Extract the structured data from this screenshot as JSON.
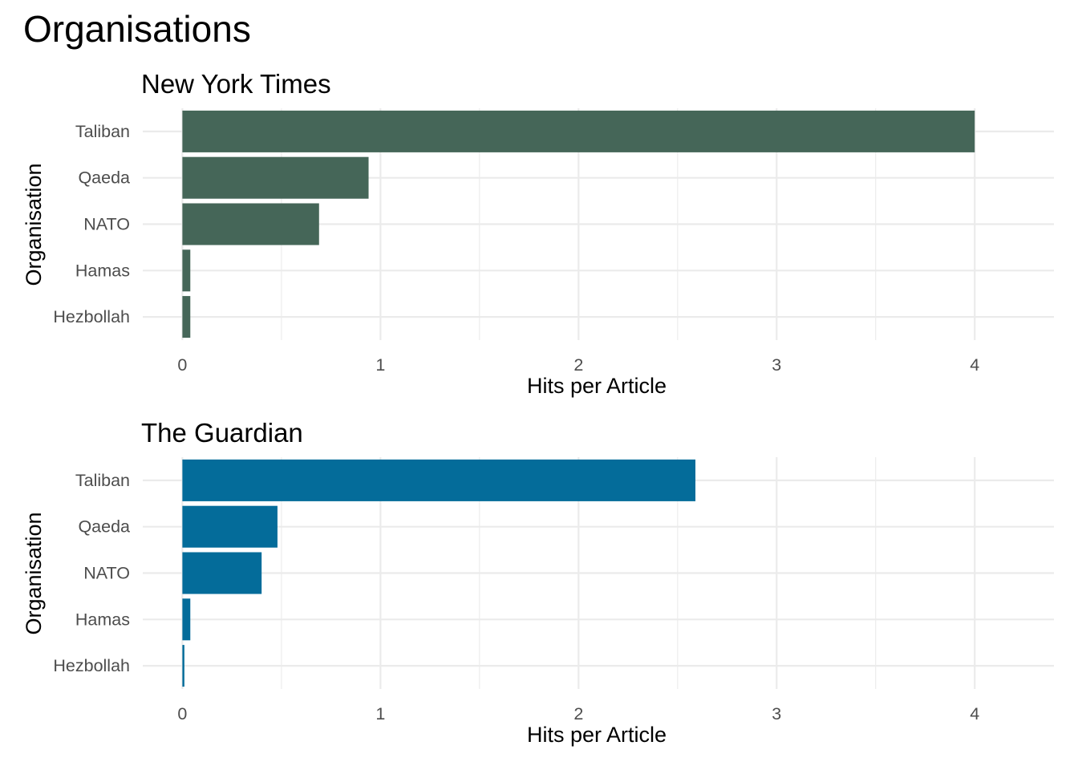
{
  "title": "Organisations",
  "chart_data": [
    {
      "type": "bar",
      "orientation": "horizontal",
      "title": "New York Times",
      "xlabel": "Hits per Article",
      "ylabel": "Organisation",
      "categories": [
        "Taliban",
        "Qaeda",
        "NATO",
        "Hamas",
        "Hezbollah"
      ],
      "values": [
        4.0,
        0.94,
        0.69,
        0.04,
        0.04
      ],
      "xlim": [
        -0.2,
        4.4
      ],
      "xticks": [
        0,
        1,
        2,
        3,
        4
      ],
      "grid": true,
      "legend": "none",
      "color": "#456658"
    },
    {
      "type": "bar",
      "orientation": "horizontal",
      "title": "The Guardian",
      "xlabel": "Hits per Article",
      "ylabel": "Organisation",
      "categories": [
        "Taliban",
        "Qaeda",
        "NATO",
        "Hamas",
        "Hezbollah"
      ],
      "values": [
        2.59,
        0.48,
        0.4,
        0.04,
        0.01
      ],
      "xlim": [
        -0.2,
        4.4
      ],
      "xticks": [
        0,
        1,
        2,
        3,
        4
      ],
      "grid": true,
      "legend": "none",
      "color": "#046c9a"
    }
  ]
}
